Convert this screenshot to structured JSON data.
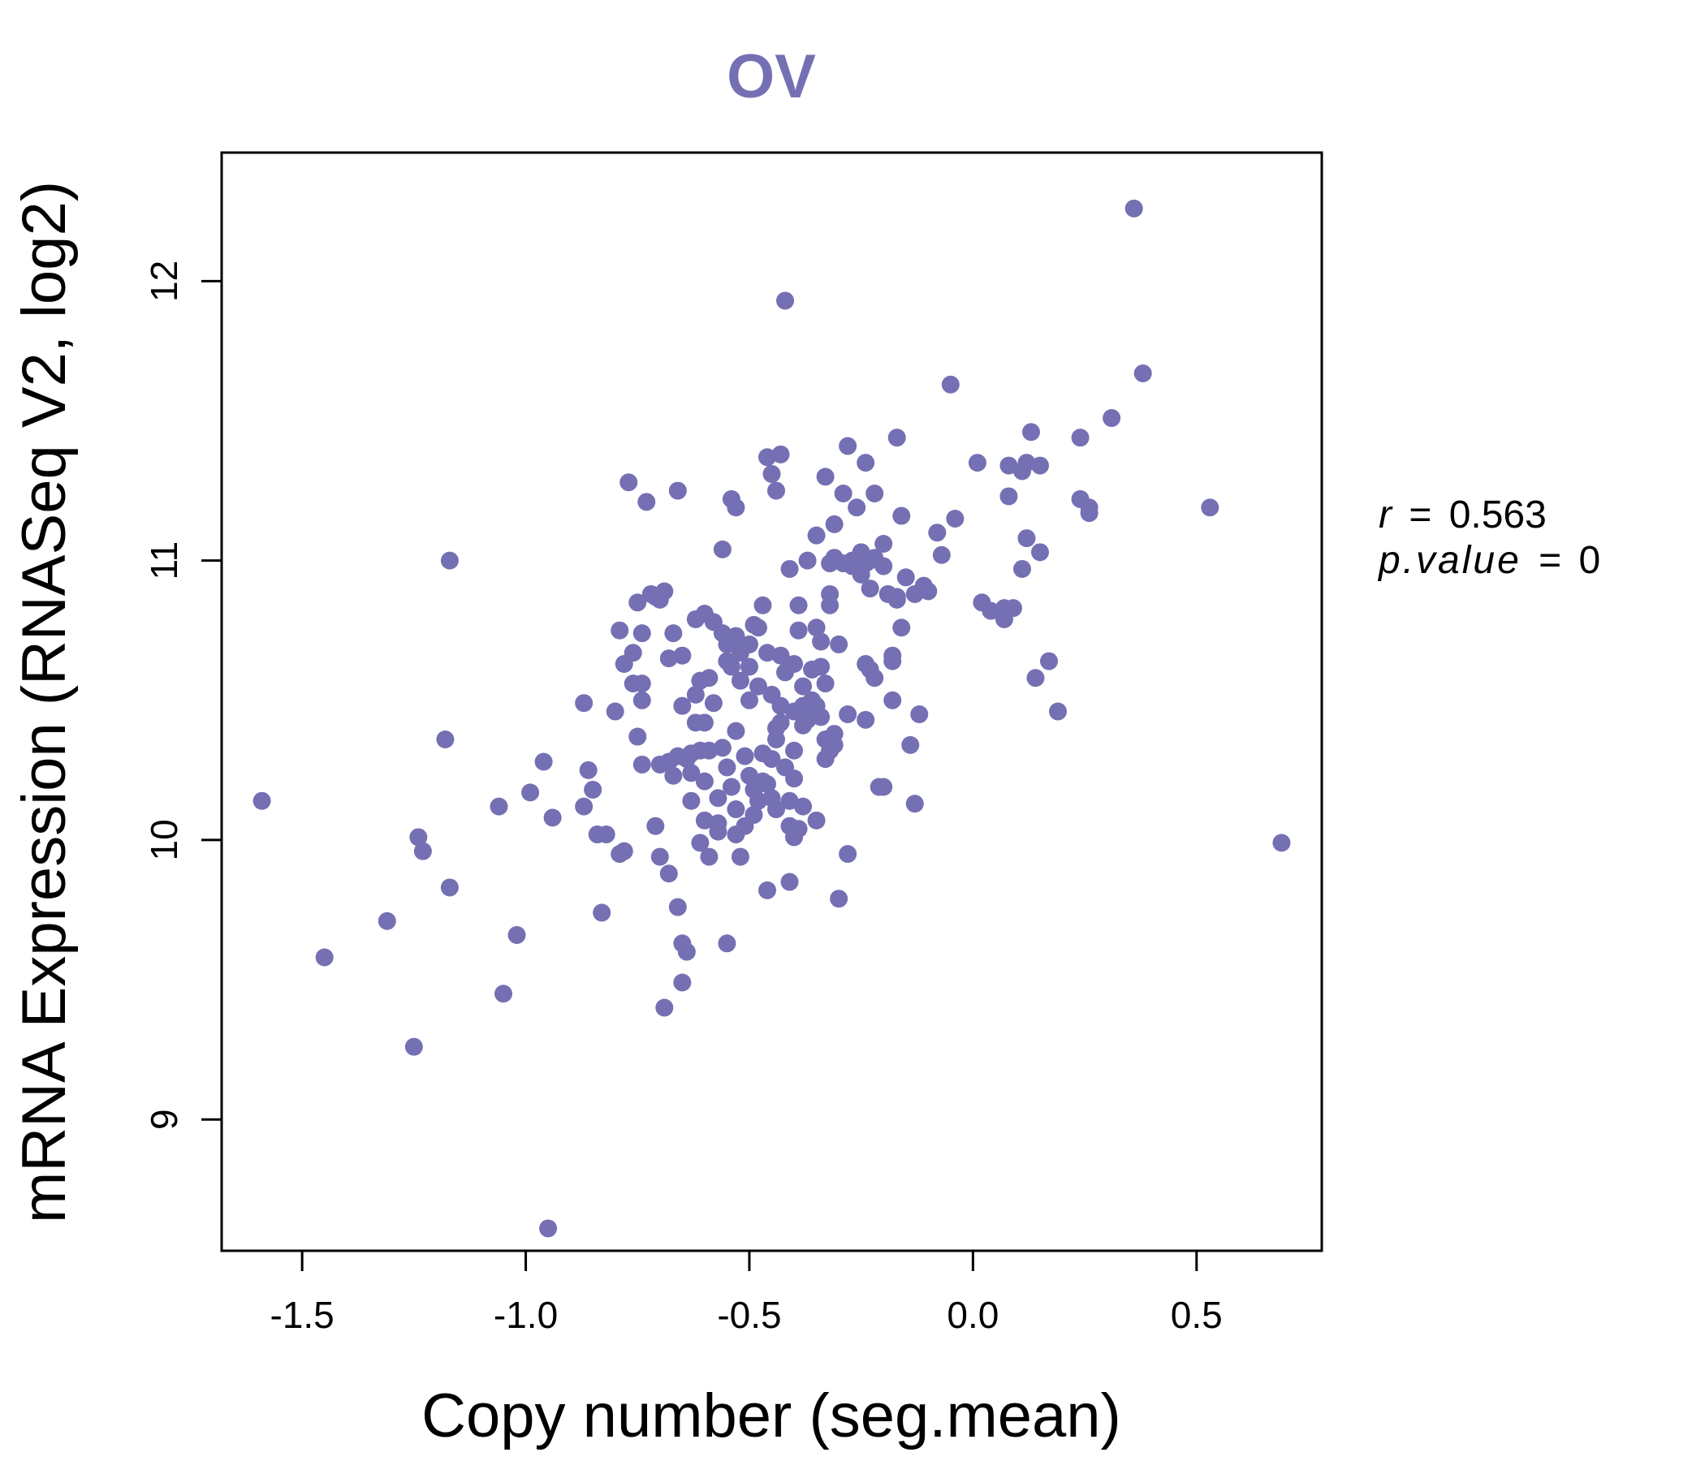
{
  "chart_data": {
    "type": "scatter",
    "title": "OV",
    "xlabel": "Copy number (seg.mean)",
    "ylabel": "mRNA Expression (RNASeq V2, log2)",
    "xlim": [
      -1.68,
      0.78
    ],
    "ylim": [
      8.53,
      12.46
    ],
    "x_ticks": [
      -1.5,
      -1.0,
      -0.5,
      0.0,
      0.5
    ],
    "x_tick_labels": [
      "-1.5",
      "-1.0",
      "-0.5",
      "0.0",
      "0.5"
    ],
    "y_ticks": [
      9,
      10,
      11,
      12
    ],
    "y_tick_labels": [
      "9",
      "10",
      "11",
      "12"
    ],
    "grid": false,
    "color": "#7570b3",
    "annotations": {
      "r_label": "r",
      "r_value": "0.563",
      "p_label": "p.value",
      "p_value": "0",
      "equals": "="
    },
    "points": [
      [
        -1.59,
        10.14
      ],
      [
        -1.45,
        9.58
      ],
      [
        -1.31,
        9.71
      ],
      [
        -1.25,
        9.26
      ],
      [
        -1.24,
        10.01
      ],
      [
        -1.23,
        9.96
      ],
      [
        -1.18,
        10.36
      ],
      [
        -1.17,
        9.83
      ],
      [
        -1.17,
        11.0
      ],
      [
        -1.06,
        10.12
      ],
      [
        -1.05,
        9.45
      ],
      [
        -1.02,
        9.66
      ],
      [
        -0.99,
        10.17
      ],
      [
        -0.96,
        10.28
      ],
      [
        -0.95,
        8.61
      ],
      [
        -0.94,
        10.08
      ],
      [
        -0.87,
        10.49
      ],
      [
        -0.87,
        10.12
      ],
      [
        -0.86,
        10.25
      ],
      [
        -0.85,
        10.18
      ],
      [
        -0.84,
        10.02
      ],
      [
        -0.83,
        9.74
      ],
      [
        -0.82,
        10.02
      ],
      [
        -0.8,
        10.46
      ],
      [
        -0.79,
        10.75
      ],
      [
        -0.79,
        9.95
      ],
      [
        -0.78,
        10.63
      ],
      [
        -0.78,
        9.96
      ],
      [
        -0.77,
        11.28
      ],
      [
        -0.76,
        10.67
      ],
      [
        -0.76,
        10.56
      ],
      [
        -0.75,
        10.85
      ],
      [
        -0.75,
        10.37
      ],
      [
        -0.74,
        10.74
      ],
      [
        -0.74,
        10.5
      ],
      [
        -0.74,
        10.27
      ],
      [
        -0.74,
        10.56
      ],
      [
        -0.73,
        11.21
      ],
      [
        -0.72,
        10.88
      ],
      [
        -0.71,
        10.05
      ],
      [
        -0.71,
        10.87
      ],
      [
        -0.7,
        10.86
      ],
      [
        -0.7,
        9.94
      ],
      [
        -0.7,
        10.27
      ],
      [
        -0.69,
        9.4
      ],
      [
        -0.69,
        10.89
      ],
      [
        -0.68,
        10.28
      ],
      [
        -0.68,
        9.88
      ],
      [
        -0.68,
        10.65
      ],
      [
        -0.67,
        10.74
      ],
      [
        -0.67,
        10.23
      ],
      [
        -0.66,
        11.25
      ],
      [
        -0.66,
        9.76
      ],
      [
        -0.66,
        10.3
      ],
      [
        -0.65,
        9.63
      ],
      [
        -0.65,
        9.49
      ],
      [
        -0.65,
        10.48
      ],
      [
        -0.65,
        10.66
      ],
      [
        -0.64,
        9.6
      ],
      [
        -0.64,
        10.29
      ],
      [
        -0.63,
        10.14
      ],
      [
        -0.63,
        10.31
      ],
      [
        -0.63,
        10.24
      ],
      [
        -0.62,
        10.79
      ],
      [
        -0.62,
        10.52
      ],
      [
        -0.62,
        10.42
      ],
      [
        -0.61,
        9.99
      ],
      [
        -0.61,
        10.57
      ],
      [
        -0.61,
        10.32
      ],
      [
        -0.6,
        10.81
      ],
      [
        -0.6,
        10.42
      ],
      [
        -0.6,
        10.07
      ],
      [
        -0.6,
        10.21
      ],
      [
        -0.59,
        10.32
      ],
      [
        -0.59,
        9.94
      ],
      [
        -0.59,
        10.58
      ],
      [
        -0.58,
        10.49
      ],
      [
        -0.58,
        10.78
      ],
      [
        -0.57,
        10.06
      ],
      [
        -0.57,
        10.15
      ],
      [
        -0.57,
        10.03
      ],
      [
        -0.56,
        11.04
      ],
      [
        -0.56,
        10.74
      ],
      [
        -0.56,
        10.33
      ],
      [
        -0.55,
        10.26
      ],
      [
        -0.55,
        10.64
      ],
      [
        -0.55,
        9.63
      ],
      [
        -0.55,
        10.7
      ],
      [
        -0.54,
        10.19
      ],
      [
        -0.54,
        10.62
      ],
      [
        -0.54,
        11.22
      ],
      [
        -0.53,
        10.11
      ],
      [
        -0.53,
        10.39
      ],
      [
        -0.53,
        10.02
      ],
      [
        -0.53,
        11.19
      ],
      [
        -0.53,
        10.73
      ],
      [
        -0.52,
        9.94
      ],
      [
        -0.52,
        10.57
      ],
      [
        -0.52,
        10.67
      ],
      [
        -0.51,
        10.05
      ],
      [
        -0.51,
        10.3
      ],
      [
        -0.5,
        10.23
      ],
      [
        -0.5,
        10.5
      ],
      [
        -0.5,
        10.62
      ],
      [
        -0.5,
        10.7
      ],
      [
        -0.49,
        10.09
      ],
      [
        -0.49,
        10.77
      ],
      [
        -0.49,
        10.18
      ],
      [
        -0.48,
        10.55
      ],
      [
        -0.48,
        10.14
      ],
      [
        -0.48,
        10.76
      ],
      [
        -0.47,
        10.31
      ],
      [
        -0.47,
        10.21
      ],
      [
        -0.47,
        10.84
      ],
      [
        -0.46,
        9.82
      ],
      [
        -0.46,
        10.2
      ],
      [
        -0.46,
        10.67
      ],
      [
        -0.46,
        11.37
      ],
      [
        -0.45,
        10.52
      ],
      [
        -0.45,
        10.29
      ],
      [
        -0.45,
        11.31
      ],
      [
        -0.45,
        10.15
      ],
      [
        -0.44,
        10.4
      ],
      [
        -0.44,
        11.25
      ],
      [
        -0.44,
        10.11
      ],
      [
        -0.44,
        10.36
      ],
      [
        -0.43,
        11.38
      ],
      [
        -0.43,
        10.42
      ],
      [
        -0.43,
        10.48
      ],
      [
        -0.43,
        10.66
      ],
      [
        -0.42,
        10.26
      ],
      [
        -0.42,
        11.93
      ],
      [
        -0.42,
        10.6
      ],
      [
        -0.41,
        9.85
      ],
      [
        -0.41,
        10.97
      ],
      [
        -0.41,
        10.14
      ],
      [
        -0.41,
        10.05
      ],
      [
        -0.4,
        10.46
      ],
      [
        -0.4,
        10.32
      ],
      [
        -0.4,
        10.01
      ],
      [
        -0.4,
        10.63
      ],
      [
        -0.4,
        10.22
      ],
      [
        -0.39,
        10.84
      ],
      [
        -0.39,
        10.75
      ],
      [
        -0.39,
        10.04
      ],
      [
        -0.38,
        10.48
      ],
      [
        -0.38,
        10.12
      ],
      [
        -0.38,
        10.41
      ],
      [
        -0.38,
        10.55
      ],
      [
        -0.37,
        11.0
      ],
      [
        -0.37,
        10.43
      ],
      [
        -0.36,
        10.61
      ],
      [
        -0.36,
        10.5
      ],
      [
        -0.35,
        10.07
      ],
      [
        -0.35,
        10.76
      ],
      [
        -0.35,
        11.09
      ],
      [
        -0.35,
        10.48
      ],
      [
        -0.34,
        10.62
      ],
      [
        -0.34,
        10.44
      ],
      [
        -0.34,
        10.71
      ],
      [
        -0.33,
        10.29
      ],
      [
        -0.33,
        10.36
      ],
      [
        -0.33,
        11.3
      ],
      [
        -0.33,
        10.56
      ],
      [
        -0.32,
        10.88
      ],
      [
        -0.32,
        10.32
      ],
      [
        -0.32,
        10.99
      ],
      [
        -0.32,
        10.84
      ],
      [
        -0.31,
        11.13
      ],
      [
        -0.31,
        11.01
      ],
      [
        -0.31,
        10.34
      ],
      [
        -0.31,
        10.38
      ],
      [
        -0.3,
        10.7
      ],
      [
        -0.3,
        9.79
      ],
      [
        -0.29,
        11.24
      ],
      [
        -0.29,
        10.99
      ],
      [
        -0.28,
        9.95
      ],
      [
        -0.28,
        11.41
      ],
      [
        -0.28,
        10.45
      ],
      [
        -0.27,
        11.0
      ],
      [
        -0.27,
        10.98
      ],
      [
        -0.26,
        11.19
      ],
      [
        -0.25,
        11.03
      ],
      [
        -0.25,
        10.95
      ],
      [
        -0.24,
        10.99
      ],
      [
        -0.24,
        10.63
      ],
      [
        -0.24,
        11.35
      ],
      [
        -0.24,
        10.43
      ],
      [
        -0.23,
        11.0
      ],
      [
        -0.23,
        10.61
      ],
      [
        -0.23,
        10.9
      ],
      [
        -0.22,
        11.01
      ],
      [
        -0.22,
        10.58
      ],
      [
        -0.22,
        11.24
      ],
      [
        -0.21,
        10.19
      ],
      [
        -0.2,
        10.98
      ],
      [
        -0.2,
        10.19
      ],
      [
        -0.2,
        11.06
      ],
      [
        -0.19,
        10.88
      ],
      [
        -0.18,
        10.66
      ],
      [
        -0.18,
        10.5
      ],
      [
        -0.18,
        10.64
      ],
      [
        -0.17,
        11.44
      ],
      [
        -0.17,
        10.87
      ],
      [
        -0.17,
        10.86
      ],
      [
        -0.16,
        10.76
      ],
      [
        -0.16,
        11.16
      ],
      [
        -0.15,
        10.94
      ],
      [
        -0.14,
        10.34
      ],
      [
        -0.13,
        10.13
      ],
      [
        -0.13,
        10.88
      ],
      [
        -0.12,
        10.45
      ],
      [
        -0.11,
        10.91
      ],
      [
        -0.1,
        10.89
      ],
      [
        -0.08,
        11.1
      ],
      [
        -0.07,
        11.02
      ],
      [
        -0.05,
        11.63
      ],
      [
        -0.04,
        11.15
      ],
      [
        0.01,
        11.35
      ],
      [
        0.02,
        10.85
      ],
      [
        0.04,
        10.82
      ],
      [
        0.07,
        10.83
      ],
      [
        0.07,
        10.79
      ],
      [
        0.08,
        11.34
      ],
      [
        0.08,
        11.23
      ],
      [
        0.09,
        10.83
      ],
      [
        0.11,
        11.32
      ],
      [
        0.11,
        10.97
      ],
      [
        0.12,
        11.35
      ],
      [
        0.12,
        11.08
      ],
      [
        0.13,
        11.46
      ],
      [
        0.14,
        10.58
      ],
      [
        0.15,
        11.34
      ],
      [
        0.15,
        11.03
      ],
      [
        0.17,
        10.64
      ],
      [
        0.19,
        10.46
      ],
      [
        0.24,
        11.22
      ],
      [
        0.24,
        11.44
      ],
      [
        0.26,
        11.19
      ],
      [
        0.26,
        11.17
      ],
      [
        0.31,
        11.51
      ],
      [
        0.36,
        12.26
      ],
      [
        0.38,
        11.67
      ],
      [
        0.53,
        11.19
      ],
      [
        0.69,
        9.99
      ]
    ]
  }
}
